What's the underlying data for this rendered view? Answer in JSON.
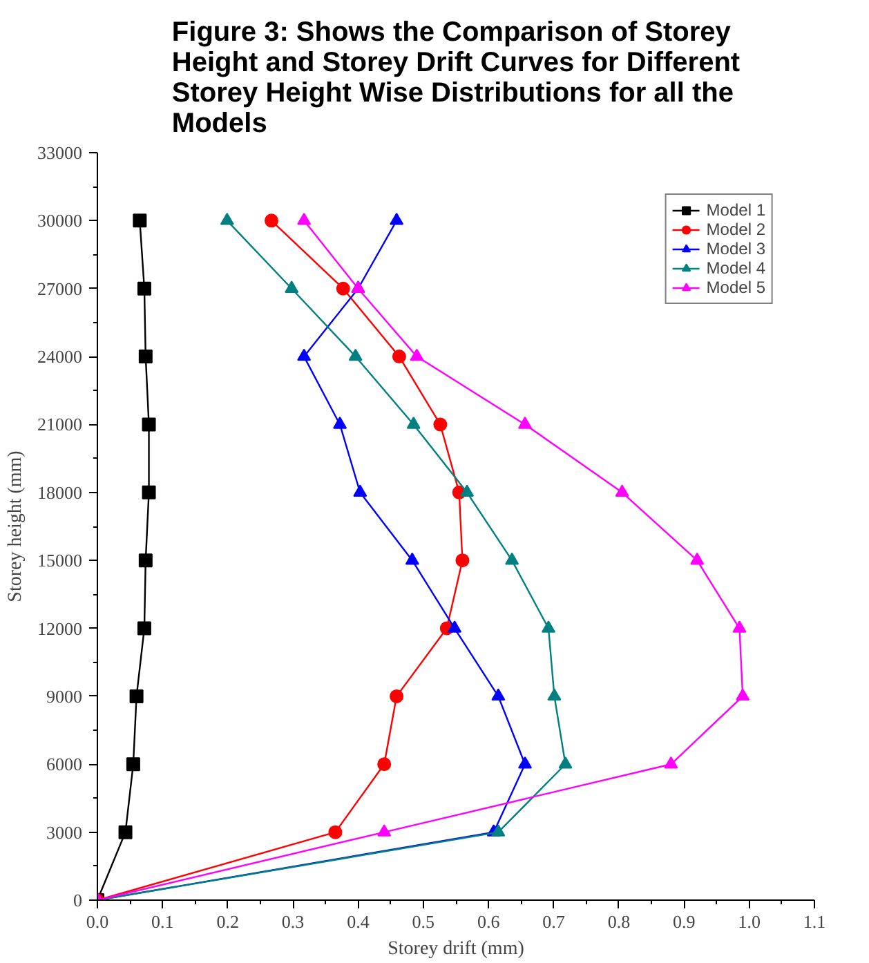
{
  "chart_data": {
    "type": "line",
    "title": "Figure 3: Shows the Comparison of Storey Height and Storey Drift Curves for Different Storey Height Wise Distributions for all the Models",
    "xlabel": "Storey drift (mm)",
    "ylabel": "Storey height (mm)",
    "xlim": [
      0,
      1.1
    ],
    "ylim": [
      0,
      33000
    ],
    "xticks": [
      {
        "value": 0,
        "label": "0.0"
      },
      0.1,
      0.2,
      0.3,
      0.4,
      0.5,
      0.6,
      0.7,
      0.8,
      0.9,
      {
        "value": 1,
        "label": "1.0"
      },
      1.1
    ],
    "yticks": [
      0,
      3000,
      6000,
      9000,
      12000,
      15000,
      18000,
      21000,
      24000,
      27000,
      30000,
      33000
    ],
    "grid": false,
    "legend": "top right",
    "series": [
      {
        "name": "Model 1",
        "color": "#000000",
        "marker": "square",
        "x": [
          0.065,
          0.072,
          0.074,
          0.079,
          0.079,
          0.074,
          0.072,
          0.06,
          0.055,
          0.043,
          0
        ],
        "values": [
          30000,
          27000,
          24000,
          21000,
          18000,
          15000,
          12000,
          9000,
          6000,
          3000,
          0
        ]
      },
      {
        "name": "Model 2",
        "color": "#ff0000",
        "marker": "circle",
        "x": [
          0.267,
          0.377,
          0.463,
          0.526,
          0.555,
          0.56,
          0.536,
          0.459,
          0.44,
          0.365,
          0
        ],
        "values": [
          30000,
          27000,
          24000,
          21000,
          18000,
          15000,
          12000,
          9000,
          6000,
          3000,
          0
        ]
      },
      {
        "name": "Model 3",
        "color": "#0000ff",
        "marker": "triangle",
        "x": [
          0.459,
          0.4,
          0.317,
          0.372,
          0.403,
          0.483,
          0.548,
          0.615,
          0.656,
          0.608,
          0
        ],
        "values": [
          30000,
          27000,
          24000,
          21000,
          18000,
          15000,
          12000,
          9000,
          6000,
          3000,
          0
        ]
      },
      {
        "name": "Model 4",
        "color": "#008080",
        "marker": "triangle",
        "x": [
          0.199,
          0.298,
          0.396,
          0.485,
          0.567,
          0.636,
          0.692,
          0.701,
          0.718,
          0.615,
          0
        ],
        "values": [
          30000,
          27000,
          24000,
          21000,
          18000,
          15000,
          12000,
          9000,
          6000,
          3000,
          0
        ]
      },
      {
        "name": "Model 5",
        "color": "#ff00ff",
        "marker": "triangle",
        "x": [
          0.317,
          0.4,
          0.49,
          0.656,
          0.805,
          0.92,
          0.985,
          0.99,
          0.88,
          0.44,
          0
        ],
        "values": [
          30000,
          27000,
          24000,
          21000,
          18000,
          15000,
          12000,
          9000,
          6000,
          3000,
          0
        ]
      }
    ]
  }
}
